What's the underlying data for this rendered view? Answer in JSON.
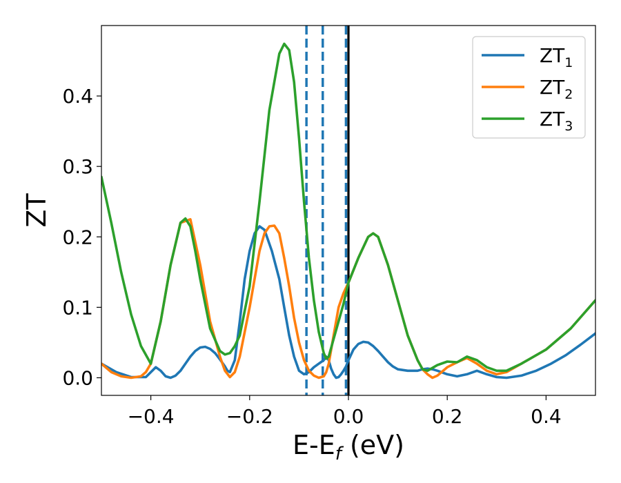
{
  "chart_data": {
    "type": "line",
    "xlabel": "E-E",
    "xlabel_sub": "f",
    "xlabel_unit": " (eV)",
    "ylabel": "ZT",
    "xlim": [
      -0.5,
      0.5
    ],
    "ylim": [
      -0.025,
      0.5
    ],
    "xticks": [
      -0.4,
      -0.2,
      0.0,
      0.2,
      0.4
    ],
    "xtick_labels": [
      "−0.4",
      "−0.2",
      "0.0",
      "0.2",
      "0.4"
    ],
    "yticks": [
      0.0,
      0.1,
      0.2,
      0.3,
      0.4
    ],
    "ytick_labels": [
      "0.0",
      "0.1",
      "0.2",
      "0.3",
      "0.4"
    ],
    "grid": false,
    "legend_position": "top-right",
    "vlines": [
      {
        "x": -0.085,
        "style": "dashed",
        "color": "#1f77b4"
      },
      {
        "x": -0.052,
        "style": "dashed",
        "color": "#1f77b4"
      },
      {
        "x": -0.005,
        "style": "dashed",
        "color": "#1f77b4"
      },
      {
        "x": 0.0,
        "style": "solid",
        "color": "#000000"
      }
    ],
    "series": [
      {
        "name": "ZT",
        "sub": "1",
        "color": "#1f77b4",
        "x": [
          -0.5,
          -0.47,
          -0.44,
          -0.41,
          -0.39,
          -0.38,
          -0.37,
          -0.36,
          -0.35,
          -0.34,
          -0.33,
          -0.32,
          -0.31,
          -0.3,
          -0.29,
          -0.28,
          -0.27,
          -0.26,
          -0.25,
          -0.245,
          -0.24,
          -0.23,
          -0.22,
          -0.21,
          -0.2,
          -0.19,
          -0.18,
          -0.17,
          -0.155,
          -0.14,
          -0.13,
          -0.12,
          -0.11,
          -0.1,
          -0.09,
          -0.08,
          -0.07,
          -0.06,
          -0.05,
          -0.045,
          -0.04,
          -0.035,
          -0.03,
          -0.025,
          -0.02,
          -0.015,
          -0.01,
          -0.005,
          0.0,
          0.01,
          0.02,
          0.03,
          0.04,
          0.05,
          0.06,
          0.07,
          0.08,
          0.09,
          0.1,
          0.12,
          0.14,
          0.15,
          0.16,
          0.17,
          0.18,
          0.2,
          0.22,
          0.24,
          0.26,
          0.28,
          0.3,
          0.32,
          0.35,
          0.38,
          0.41,
          0.44,
          0.47,
          0.5
        ],
        "y": [
          0.02,
          0.008,
          0.001,
          0.001,
          0.015,
          0.01,
          0.002,
          0.0,
          0.003,
          0.01,
          0.02,
          0.03,
          0.038,
          0.043,
          0.044,
          0.041,
          0.035,
          0.026,
          0.016,
          0.01,
          0.008,
          0.025,
          0.08,
          0.14,
          0.18,
          0.205,
          0.215,
          0.21,
          0.18,
          0.14,
          0.1,
          0.06,
          0.03,
          0.01,
          0.005,
          0.008,
          0.015,
          0.02,
          0.025,
          0.03,
          0.025,
          0.013,
          0.005,
          0.0,
          0.001,
          0.005,
          0.01,
          0.016,
          0.025,
          0.04,
          0.048,
          0.051,
          0.05,
          0.045,
          0.038,
          0.03,
          0.022,
          0.016,
          0.012,
          0.01,
          0.01,
          0.012,
          0.013,
          0.012,
          0.01,
          0.005,
          0.002,
          0.005,
          0.01,
          0.005,
          0.001,
          0.0,
          0.003,
          0.01,
          0.02,
          0.032,
          0.047,
          0.063
        ]
      },
      {
        "name": "ZT",
        "sub": "2",
        "color": "#ff7f0e",
        "x": [
          -0.5,
          -0.48,
          -0.46,
          -0.44,
          -0.42,
          -0.41,
          -0.4,
          -0.38,
          -0.36,
          -0.34,
          -0.32,
          -0.3,
          -0.28,
          -0.26,
          -0.25,
          -0.24,
          -0.23,
          -0.22,
          -0.2,
          -0.18,
          -0.17,
          -0.16,
          -0.15,
          -0.14,
          -0.13,
          -0.12,
          -0.11,
          -0.1,
          -0.09,
          -0.08,
          -0.07,
          -0.06,
          -0.05,
          -0.045,
          -0.04,
          -0.03,
          -0.02,
          -0.01,
          0.0,
          0.02,
          0.04,
          0.05,
          0.06,
          0.08,
          0.1,
          0.12,
          0.14,
          0.15,
          0.16,
          0.17,
          0.18,
          0.2,
          0.22,
          0.24,
          0.26,
          0.28,
          0.3,
          0.32,
          0.35,
          0.4,
          0.45,
          0.5
        ],
        "y": [
          0.02,
          0.008,
          0.002,
          0.0,
          0.002,
          0.008,
          0.02,
          0.08,
          0.16,
          0.22,
          0.225,
          0.16,
          0.08,
          0.03,
          0.01,
          0.001,
          0.008,
          0.03,
          0.1,
          0.18,
          0.205,
          0.215,
          0.216,
          0.205,
          0.17,
          0.13,
          0.085,
          0.05,
          0.025,
          0.01,
          0.003,
          0.0,
          0.002,
          0.008,
          0.02,
          0.06,
          0.1,
          0.12,
          0.135,
          0.17,
          0.2,
          0.205,
          0.2,
          0.16,
          0.11,
          0.06,
          0.025,
          0.012,
          0.005,
          0.0,
          0.003,
          0.015,
          0.022,
          0.028,
          0.02,
          0.01,
          0.005,
          0.008,
          0.02,
          0.04,
          0.07,
          0.11
        ]
      },
      {
        "name": "ZT",
        "sub": "3",
        "color": "#2ca02c",
        "x": [
          -0.5,
          -0.48,
          -0.46,
          -0.44,
          -0.42,
          -0.4,
          -0.38,
          -0.36,
          -0.34,
          -0.33,
          -0.32,
          -0.31,
          -0.3,
          -0.28,
          -0.26,
          -0.25,
          -0.24,
          -0.23,
          -0.22,
          -0.2,
          -0.18,
          -0.16,
          -0.14,
          -0.13,
          -0.12,
          -0.11,
          -0.1,
          -0.09,
          -0.08,
          -0.07,
          -0.06,
          -0.05,
          -0.045,
          -0.04,
          -0.03,
          -0.02,
          -0.01,
          0.0,
          0.02,
          0.04,
          0.05,
          0.06,
          0.08,
          0.1,
          0.12,
          0.14,
          0.15,
          0.16,
          0.18,
          0.2,
          0.22,
          0.24,
          0.26,
          0.28,
          0.3,
          0.32,
          0.35,
          0.4,
          0.45,
          0.5
        ],
        "y": [
          0.285,
          0.22,
          0.15,
          0.09,
          0.045,
          0.02,
          0.08,
          0.16,
          0.22,
          0.226,
          0.215,
          0.18,
          0.14,
          0.07,
          0.038,
          0.033,
          0.035,
          0.045,
          0.06,
          0.13,
          0.25,
          0.38,
          0.46,
          0.474,
          0.465,
          0.42,
          0.34,
          0.25,
          0.17,
          0.11,
          0.065,
          0.035,
          0.027,
          0.03,
          0.055,
          0.08,
          0.105,
          0.135,
          0.17,
          0.2,
          0.205,
          0.2,
          0.16,
          0.11,
          0.06,
          0.025,
          0.012,
          0.01,
          0.018,
          0.023,
          0.022,
          0.03,
          0.025,
          0.015,
          0.01,
          0.01,
          0.02,
          0.04,
          0.07,
          0.11
        ]
      }
    ]
  }
}
